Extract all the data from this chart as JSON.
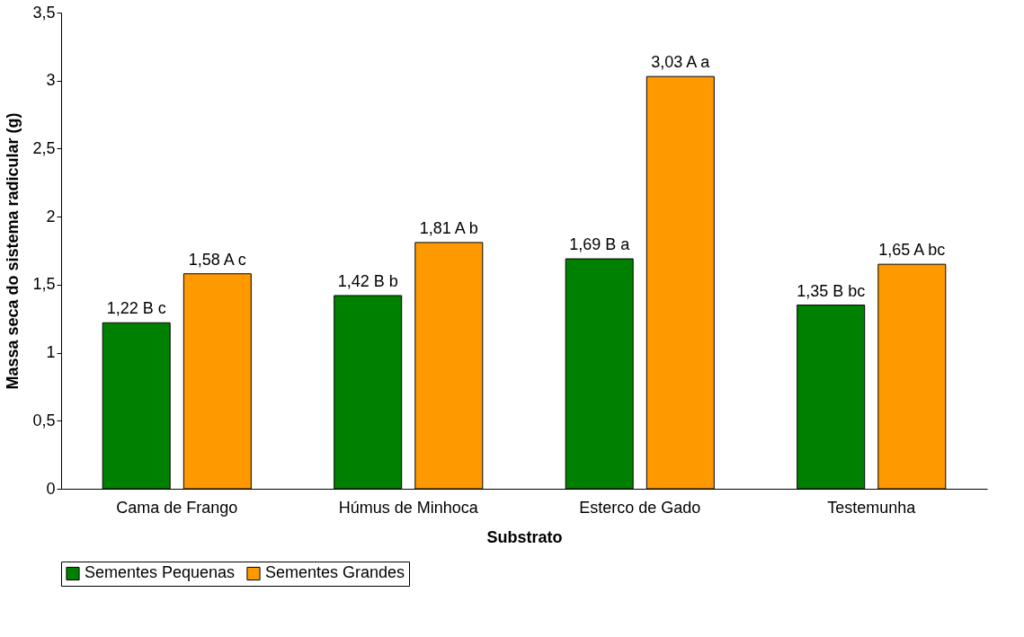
{
  "chart_data": {
    "type": "bar",
    "xlabel": "Substrato",
    "ylabel": "Massa seca do sistema radicular (g)",
    "categories": [
      "Cama de Frango",
      "Húmus de Minhoca",
      "Esterco de Gado",
      "Testemunha"
    ],
    "series": [
      {
        "name": "Sementes Pequenas",
        "color": "#008000",
        "values": [
          1.22,
          1.42,
          1.69,
          1.35
        ],
        "value_labels": [
          "1,22 B c",
          "1,42 B b",
          "1,69 B a",
          "1,35 B bc"
        ]
      },
      {
        "name": "Sementes Grandes",
        "color": "#ff9900",
        "values": [
          1.58,
          1.81,
          3.03,
          1.65
        ],
        "value_labels": [
          "1,58 A c",
          "1,81 A b",
          "3,03 A a",
          "1,65 A bc"
        ]
      }
    ],
    "ylim": [
      0,
      3.5
    ],
    "yticks": [
      0,
      {
        "value": 0.5,
        "label": "0,5"
      },
      1,
      {
        "value": 1.5,
        "label": "1,5"
      },
      2,
      {
        "value": 2.5,
        "label": "2,5"
      },
      3,
      {
        "value": 3.5,
        "label": "3,5"
      }
    ],
    "grid": false,
    "legend": "bottom"
  }
}
